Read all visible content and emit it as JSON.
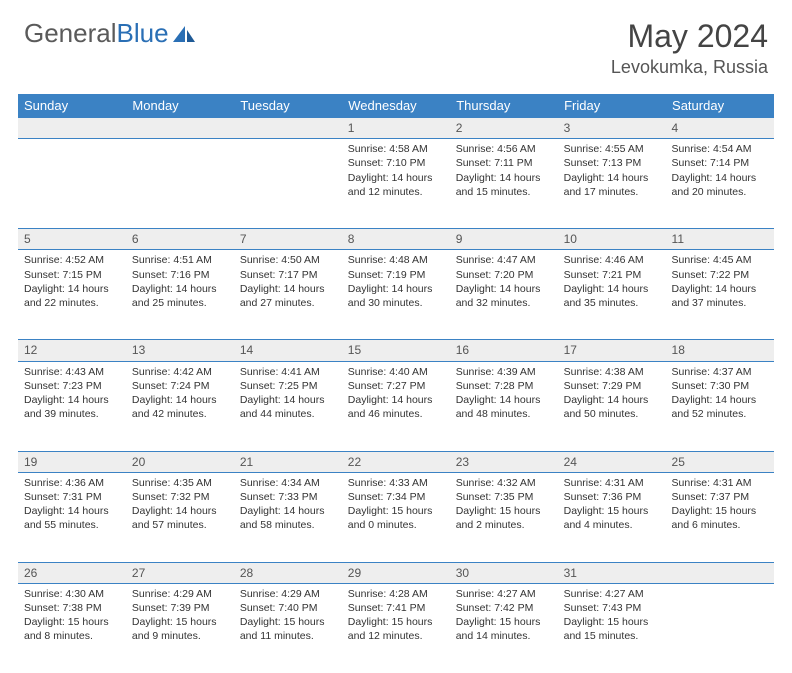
{
  "brand": {
    "part1": "General",
    "part2": "Blue"
  },
  "title": "May 2024",
  "location": "Levokumka, Russia",
  "colors": {
    "header_bg": "#3b82c4",
    "header_text": "#ffffff",
    "daynum_bg": "#eeeeee",
    "border": "#3b82c4",
    "body_text": "#333333",
    "logo_gray": "#5a5a5a",
    "logo_blue": "#2a6fb5"
  },
  "day_headers": [
    "Sunday",
    "Monday",
    "Tuesday",
    "Wednesday",
    "Thursday",
    "Friday",
    "Saturday"
  ],
  "weeks": [
    [
      {
        "n": "",
        "lines": []
      },
      {
        "n": "",
        "lines": []
      },
      {
        "n": "",
        "lines": []
      },
      {
        "n": "1",
        "lines": [
          "Sunrise: 4:58 AM",
          "Sunset: 7:10 PM",
          "Daylight: 14 hours",
          "and 12 minutes."
        ]
      },
      {
        "n": "2",
        "lines": [
          "Sunrise: 4:56 AM",
          "Sunset: 7:11 PM",
          "Daylight: 14 hours",
          "and 15 minutes."
        ]
      },
      {
        "n": "3",
        "lines": [
          "Sunrise: 4:55 AM",
          "Sunset: 7:13 PM",
          "Daylight: 14 hours",
          "and 17 minutes."
        ]
      },
      {
        "n": "4",
        "lines": [
          "Sunrise: 4:54 AM",
          "Sunset: 7:14 PM",
          "Daylight: 14 hours",
          "and 20 minutes."
        ]
      }
    ],
    [
      {
        "n": "5",
        "lines": [
          "Sunrise: 4:52 AM",
          "Sunset: 7:15 PM",
          "Daylight: 14 hours",
          "and 22 minutes."
        ]
      },
      {
        "n": "6",
        "lines": [
          "Sunrise: 4:51 AM",
          "Sunset: 7:16 PM",
          "Daylight: 14 hours",
          "and 25 minutes."
        ]
      },
      {
        "n": "7",
        "lines": [
          "Sunrise: 4:50 AM",
          "Sunset: 7:17 PM",
          "Daylight: 14 hours",
          "and 27 minutes."
        ]
      },
      {
        "n": "8",
        "lines": [
          "Sunrise: 4:48 AM",
          "Sunset: 7:19 PM",
          "Daylight: 14 hours",
          "and 30 minutes."
        ]
      },
      {
        "n": "9",
        "lines": [
          "Sunrise: 4:47 AM",
          "Sunset: 7:20 PM",
          "Daylight: 14 hours",
          "and 32 minutes."
        ]
      },
      {
        "n": "10",
        "lines": [
          "Sunrise: 4:46 AM",
          "Sunset: 7:21 PM",
          "Daylight: 14 hours",
          "and 35 minutes."
        ]
      },
      {
        "n": "11",
        "lines": [
          "Sunrise: 4:45 AM",
          "Sunset: 7:22 PM",
          "Daylight: 14 hours",
          "and 37 minutes."
        ]
      }
    ],
    [
      {
        "n": "12",
        "lines": [
          "Sunrise: 4:43 AM",
          "Sunset: 7:23 PM",
          "Daylight: 14 hours",
          "and 39 minutes."
        ]
      },
      {
        "n": "13",
        "lines": [
          "Sunrise: 4:42 AM",
          "Sunset: 7:24 PM",
          "Daylight: 14 hours",
          "and 42 minutes."
        ]
      },
      {
        "n": "14",
        "lines": [
          "Sunrise: 4:41 AM",
          "Sunset: 7:25 PM",
          "Daylight: 14 hours",
          "and 44 minutes."
        ]
      },
      {
        "n": "15",
        "lines": [
          "Sunrise: 4:40 AM",
          "Sunset: 7:27 PM",
          "Daylight: 14 hours",
          "and 46 minutes."
        ]
      },
      {
        "n": "16",
        "lines": [
          "Sunrise: 4:39 AM",
          "Sunset: 7:28 PM",
          "Daylight: 14 hours",
          "and 48 minutes."
        ]
      },
      {
        "n": "17",
        "lines": [
          "Sunrise: 4:38 AM",
          "Sunset: 7:29 PM",
          "Daylight: 14 hours",
          "and 50 minutes."
        ]
      },
      {
        "n": "18",
        "lines": [
          "Sunrise: 4:37 AM",
          "Sunset: 7:30 PM",
          "Daylight: 14 hours",
          "and 52 minutes."
        ]
      }
    ],
    [
      {
        "n": "19",
        "lines": [
          "Sunrise: 4:36 AM",
          "Sunset: 7:31 PM",
          "Daylight: 14 hours",
          "and 55 minutes."
        ]
      },
      {
        "n": "20",
        "lines": [
          "Sunrise: 4:35 AM",
          "Sunset: 7:32 PM",
          "Daylight: 14 hours",
          "and 57 minutes."
        ]
      },
      {
        "n": "21",
        "lines": [
          "Sunrise: 4:34 AM",
          "Sunset: 7:33 PM",
          "Daylight: 14 hours",
          "and 58 minutes."
        ]
      },
      {
        "n": "22",
        "lines": [
          "Sunrise: 4:33 AM",
          "Sunset: 7:34 PM",
          "Daylight: 15 hours",
          "and 0 minutes."
        ]
      },
      {
        "n": "23",
        "lines": [
          "Sunrise: 4:32 AM",
          "Sunset: 7:35 PM",
          "Daylight: 15 hours",
          "and 2 minutes."
        ]
      },
      {
        "n": "24",
        "lines": [
          "Sunrise: 4:31 AM",
          "Sunset: 7:36 PM",
          "Daylight: 15 hours",
          "and 4 minutes."
        ]
      },
      {
        "n": "25",
        "lines": [
          "Sunrise: 4:31 AM",
          "Sunset: 7:37 PM",
          "Daylight: 15 hours",
          "and 6 minutes."
        ]
      }
    ],
    [
      {
        "n": "26",
        "lines": [
          "Sunrise: 4:30 AM",
          "Sunset: 7:38 PM",
          "Daylight: 15 hours",
          "and 8 minutes."
        ]
      },
      {
        "n": "27",
        "lines": [
          "Sunrise: 4:29 AM",
          "Sunset: 7:39 PM",
          "Daylight: 15 hours",
          "and 9 minutes."
        ]
      },
      {
        "n": "28",
        "lines": [
          "Sunrise: 4:29 AM",
          "Sunset: 7:40 PM",
          "Daylight: 15 hours",
          "and 11 minutes."
        ]
      },
      {
        "n": "29",
        "lines": [
          "Sunrise: 4:28 AM",
          "Sunset: 7:41 PM",
          "Daylight: 15 hours",
          "and 12 minutes."
        ]
      },
      {
        "n": "30",
        "lines": [
          "Sunrise: 4:27 AM",
          "Sunset: 7:42 PM",
          "Daylight: 15 hours",
          "and 14 minutes."
        ]
      },
      {
        "n": "31",
        "lines": [
          "Sunrise: 4:27 AM",
          "Sunset: 7:43 PM",
          "Daylight: 15 hours",
          "and 15 minutes."
        ]
      },
      {
        "n": "",
        "lines": []
      }
    ]
  ]
}
